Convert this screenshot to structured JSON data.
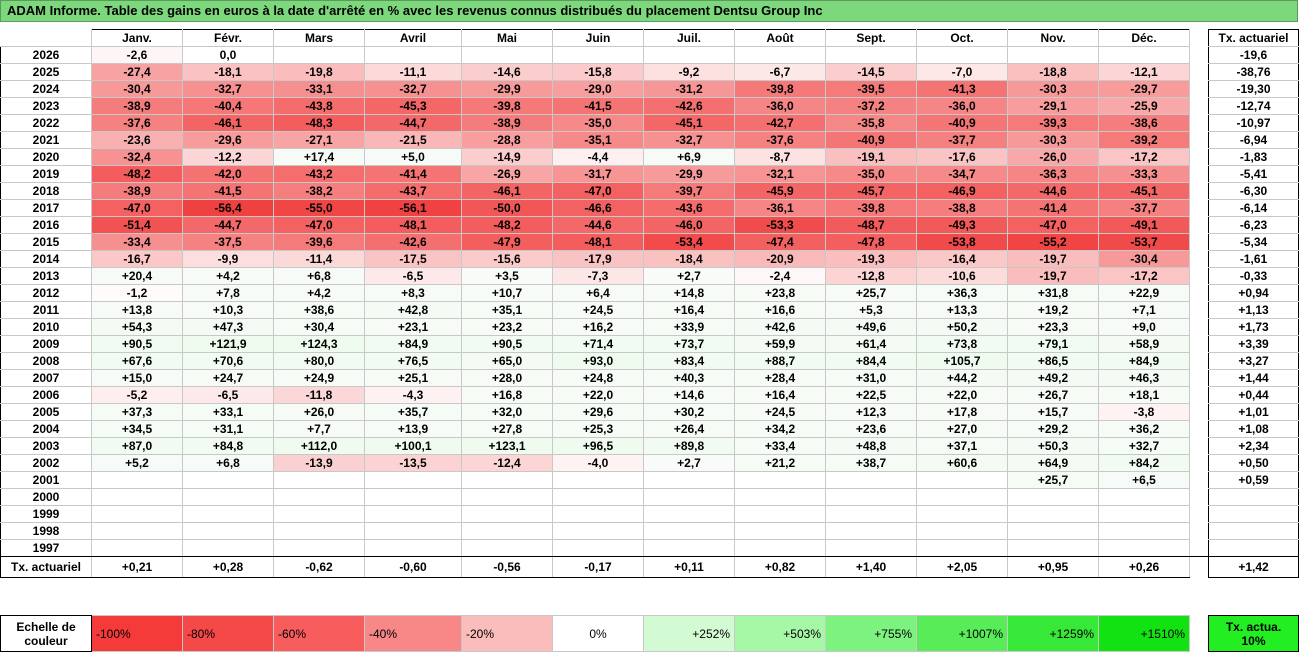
{
  "title": "ADAM Informe. Table des gains en euros à la date d'arrêté en % avec les revenus connus distribués du placement Dentsu Group Inc",
  "headers": [
    "Janv.",
    "Févr.",
    "Mars",
    "Avril",
    "Mai",
    "Juin",
    "Juil.",
    "Août",
    "Sept.",
    "Oct.",
    "Nov.",
    "Déc."
  ],
  "tx_header": "Tx. actuariel",
  "rows": [
    {
      "year": "2026",
      "vals": [
        "-2,6",
        "0,0",
        "",
        "",
        "",
        "",
        "",
        "",
        "",
        "",
        "",
        ""
      ],
      "tx": "-19,6"
    },
    {
      "year": "2025",
      "vals": [
        "-27,4",
        "-18,1",
        "-19,8",
        "-11,1",
        "-14,6",
        "-15,8",
        "-9,2",
        "-6,7",
        "-14,5",
        "-7,0",
        "-18,8",
        "-12,1"
      ],
      "tx": "-38,76"
    },
    {
      "year": "2024",
      "vals": [
        "-30,4",
        "-32,7",
        "-33,1",
        "-32,7",
        "-29,9",
        "-29,0",
        "-31,2",
        "-39,8",
        "-39,5",
        "-41,3",
        "-30,3",
        "-29,7"
      ],
      "tx": "-19,30"
    },
    {
      "year": "2023",
      "vals": [
        "-38,9",
        "-40,4",
        "-43,8",
        "-45,3",
        "-39,8",
        "-41,5",
        "-42,6",
        "-36,0",
        "-37,2",
        "-36,0",
        "-29,1",
        "-25,9"
      ],
      "tx": "-12,74"
    },
    {
      "year": "2022",
      "vals": [
        "-37,6",
        "-46,1",
        "-48,3",
        "-44,7",
        "-38,9",
        "-35,0",
        "-45,1",
        "-42,7",
        "-35,8",
        "-40,9",
        "-39,3",
        "-38,6"
      ],
      "tx": "-10,97"
    },
    {
      "year": "2021",
      "vals": [
        "-23,6",
        "-29,6",
        "-27,1",
        "-21,5",
        "-28,8",
        "-35,1",
        "-32,7",
        "-37,6",
        "-40,9",
        "-37,7",
        "-30,3",
        "-39,2"
      ],
      "tx": "-6,94"
    },
    {
      "year": "2020",
      "vals": [
        "-32,4",
        "-12,2",
        "+17,4",
        "+5,0",
        "-14,9",
        "-4,4",
        "+6,9",
        "-8,7",
        "-19,1",
        "-17,6",
        "-26,0",
        "-17,2"
      ],
      "tx": "-1,83"
    },
    {
      "year": "2019",
      "vals": [
        "-48,2",
        "-42,0",
        "-43,2",
        "-41,4",
        "-26,9",
        "-31,7",
        "-29,9",
        "-32,1",
        "-35,0",
        "-34,7",
        "-36,3",
        "-33,3"
      ],
      "tx": "-5,41"
    },
    {
      "year": "2018",
      "vals": [
        "-38,9",
        "-41,5",
        "-38,2",
        "-43,7",
        "-46,1",
        "-47,0",
        "-39,7",
        "-45,9",
        "-45,7",
        "-46,9",
        "-44,6",
        "-45,1"
      ],
      "tx": "-6,30"
    },
    {
      "year": "2017",
      "vals": [
        "-47,0",
        "-56,4",
        "-55,0",
        "-56,1",
        "-50,0",
        "-46,6",
        "-43,6",
        "-36,1",
        "-39,8",
        "-38,8",
        "-41,4",
        "-37,7"
      ],
      "tx": "-6,14"
    },
    {
      "year": "2016",
      "vals": [
        "-51,4",
        "-44,7",
        "-47,0",
        "-48,1",
        "-48,2",
        "-44,6",
        "-46,0",
        "-53,3",
        "-48,7",
        "-49,3",
        "-47,0",
        "-49,1"
      ],
      "tx": "-6,23"
    },
    {
      "year": "2015",
      "vals": [
        "-33,4",
        "-37,5",
        "-39,6",
        "-42,6",
        "-47,9",
        "-48,1",
        "-53,4",
        "-47,4",
        "-47,8",
        "-53,8",
        "-55,2",
        "-53,7"
      ],
      "tx": "-5,34"
    },
    {
      "year": "2014",
      "vals": [
        "-16,7",
        "-9,9",
        "-11,4",
        "-17,5",
        "-15,6",
        "-17,9",
        "-18,4",
        "-20,9",
        "-19,3",
        "-16,4",
        "-19,7",
        "-30,4"
      ],
      "tx": "-1,61"
    },
    {
      "year": "2013",
      "vals": [
        "+20,4",
        "+4,2",
        "+6,8",
        "-6,5",
        "+3,5",
        "-7,3",
        "+2,7",
        "-2,4",
        "-12,8",
        "-10,6",
        "-19,7",
        "-17,2"
      ],
      "tx": "-0,33"
    },
    {
      "year": "2012",
      "vals": [
        "-1,2",
        "+7,8",
        "+4,2",
        "+8,3",
        "+10,7",
        "+6,4",
        "+14,8",
        "+23,8",
        "+25,7",
        "+36,3",
        "+31,8",
        "+22,9"
      ],
      "tx": "+0,94"
    },
    {
      "year": "2011",
      "vals": [
        "+13,8",
        "+10,3",
        "+38,6",
        "+42,8",
        "+35,1",
        "+24,5",
        "+16,4",
        "+16,6",
        "+5,3",
        "+13,3",
        "+19,2",
        "+7,1"
      ],
      "tx": "+1,13"
    },
    {
      "year": "2010",
      "vals": [
        "+54,3",
        "+47,3",
        "+30,4",
        "+23,1",
        "+23,2",
        "+16,2",
        "+33,9",
        "+42,6",
        "+49,6",
        "+50,2",
        "+23,3",
        "+9,0"
      ],
      "tx": "+1,73"
    },
    {
      "year": "2009",
      "vals": [
        "+90,5",
        "+121,9",
        "+124,3",
        "+84,9",
        "+90,5",
        "+71,4",
        "+73,7",
        "+59,9",
        "+61,4",
        "+73,8",
        "+79,1",
        "+58,9"
      ],
      "tx": "+3,39"
    },
    {
      "year": "2008",
      "vals": [
        "+67,6",
        "+70,6",
        "+80,0",
        "+76,5",
        "+65,0",
        "+93,0",
        "+83,4",
        "+88,7",
        "+84,4",
        "+105,7",
        "+86,5",
        "+84,9"
      ],
      "tx": "+3,27"
    },
    {
      "year": "2007",
      "vals": [
        "+15,0",
        "+24,7",
        "+24,9",
        "+25,1",
        "+28,0",
        "+24,8",
        "+40,3",
        "+28,4",
        "+31,0",
        "+44,2",
        "+49,2",
        "+46,3"
      ],
      "tx": "+1,44"
    },
    {
      "year": "2006",
      "vals": [
        "-5,2",
        "-6,5",
        "-11,8",
        "-4,3",
        "+16,8",
        "+22,0",
        "+14,6",
        "+16,4",
        "+22,5",
        "+22,0",
        "+26,7",
        "+18,1"
      ],
      "tx": "+0,44"
    },
    {
      "year": "2005",
      "vals": [
        "+37,3",
        "+33,1",
        "+26,0",
        "+35,7",
        "+32,0",
        "+29,6",
        "+30,2",
        "+24,5",
        "+12,3",
        "+17,8",
        "+15,7",
        "-3,8"
      ],
      "tx": "+1,01"
    },
    {
      "year": "2004",
      "vals": [
        "+34,5",
        "+31,1",
        "+7,7",
        "+13,9",
        "+27,8",
        "+25,3",
        "+26,4",
        "+34,2",
        "+23,6",
        "+27,0",
        "+29,2",
        "+36,2"
      ],
      "tx": "+1,08"
    },
    {
      "year": "2003",
      "vals": [
        "+87,0",
        "+84,8",
        "+112,0",
        "+100,1",
        "+123,1",
        "+96,5",
        "+89,8",
        "+33,4",
        "+48,8",
        "+37,1",
        "+50,3",
        "+32,7"
      ],
      "tx": "+2,34"
    },
    {
      "year": "2002",
      "vals": [
        "+5,2",
        "+6,8",
        "-13,9",
        "-13,5",
        "-12,4",
        "-4,0",
        "+2,7",
        "+21,2",
        "+38,7",
        "+60,6",
        "+64,9",
        "+84,2"
      ],
      "tx": "+0,50"
    },
    {
      "year": "2001",
      "vals": [
        "",
        "",
        "",
        "",
        "",
        "",
        "",
        "",
        "",
        "",
        "+25,7",
        "+6,5"
      ],
      "tx": "+0,59"
    },
    {
      "year": "2000",
      "vals": [
        "",
        "",
        "",
        "",
        "",
        "",
        "",
        "",
        "",
        "",
        "",
        ""
      ],
      "tx": ""
    },
    {
      "year": "1999",
      "vals": [
        "",
        "",
        "",
        "",
        "",
        "",
        "",
        "",
        "",
        "",
        "",
        ""
      ],
      "tx": ""
    },
    {
      "year": "1998",
      "vals": [
        "",
        "",
        "",
        "",
        "",
        "",
        "",
        "",
        "",
        "",
        "",
        ""
      ],
      "tx": ""
    },
    {
      "year": "1997",
      "vals": [
        "",
        "",
        "",
        "",
        "",
        "",
        "",
        "",
        "",
        "",
        "",
        ""
      ],
      "tx": ""
    }
  ],
  "footer": {
    "label": "Tx. actuariel",
    "vals": [
      "+0,21",
      "+0,28",
      "-0,62",
      "-0,60",
      "-0,56",
      "-0,17",
      "+0,11",
      "+0,82",
      "+1,40",
      "+2,05",
      "+0,95",
      "+0,26"
    ],
    "tx": "+1,42"
  },
  "legend": {
    "label": "Echelle de couleur",
    "items": [
      {
        "text": "-100%",
        "color": "#f53a3a",
        "align": "left"
      },
      {
        "text": "-80%",
        "color": "#f54848",
        "align": "left"
      },
      {
        "text": "-60%",
        "color": "#f75d5d",
        "align": "left"
      },
      {
        "text": "-40%",
        "color": "#f88787",
        "align": "left"
      },
      {
        "text": "-20%",
        "color": "#fbbcbc",
        "align": "left"
      },
      {
        "text": "0%",
        "color": "#ffffff",
        "align": "center"
      },
      {
        "text": "+252%",
        "color": "#d3fbd3",
        "align": "right"
      },
      {
        "text": "+503%",
        "color": "#a6f7a6",
        "align": "right"
      },
      {
        "text": "+755%",
        "color": "#7ef27e",
        "align": "right"
      },
      {
        "text": "+1007%",
        "color": "#58ec58",
        "align": "right"
      },
      {
        "text": "+1259%",
        "color": "#38e838",
        "align": "right"
      },
      {
        "text": "+1510%",
        "color": "#12e212",
        "align": "right"
      }
    ],
    "tx_label": "Tx. actua. 10%"
  },
  "colors": {
    "title_bg": "#7dd87d",
    "neg_strong": "#f03c3c",
    "pos_light": "#eefbee"
  }
}
